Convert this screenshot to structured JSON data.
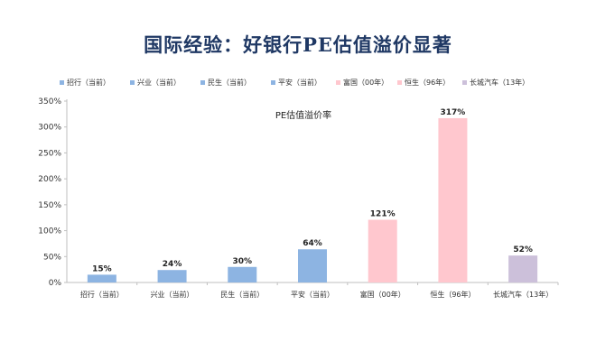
{
  "chart_data": {
    "type": "bar",
    "title": "国际经验：好银行PE估值溢价显著",
    "inner_title": "PE估值溢价率",
    "categories": [
      "招行（当前）",
      "兴业（当前）",
      "民生（当前）",
      "平安（当前）",
      "富国（00年）",
      "恒生（96年）",
      "长城汽车（13年）"
    ],
    "values": [
      15,
      24,
      30,
      64,
      121,
      317,
      52
    ],
    "value_labels": [
      "15%",
      "24%",
      "30%",
      "64%",
      "121%",
      "317%",
      "52%"
    ],
    "colors": [
      "#8db4e2",
      "#8db4e2",
      "#8db4e2",
      "#8db4e2",
      "#ffc7ce",
      "#ffc7ce",
      "#ccc0da"
    ],
    "ylim": [
      0,
      350
    ],
    "yticks": [
      0,
      50,
      100,
      150,
      200,
      250,
      300,
      350
    ],
    "ytick_labels": [
      "0%",
      "50%",
      "100%",
      "150%",
      "200%",
      "250%",
      "300%",
      "350%"
    ],
    "legend": [
      "招行（当前）",
      "兴业（当前）",
      "民生（当前）",
      "平安（当前）",
      "富国（00年）",
      "恒生（96年）",
      "长城汽车（13年）"
    ],
    "legend_placement": "top",
    "grid": false
  }
}
